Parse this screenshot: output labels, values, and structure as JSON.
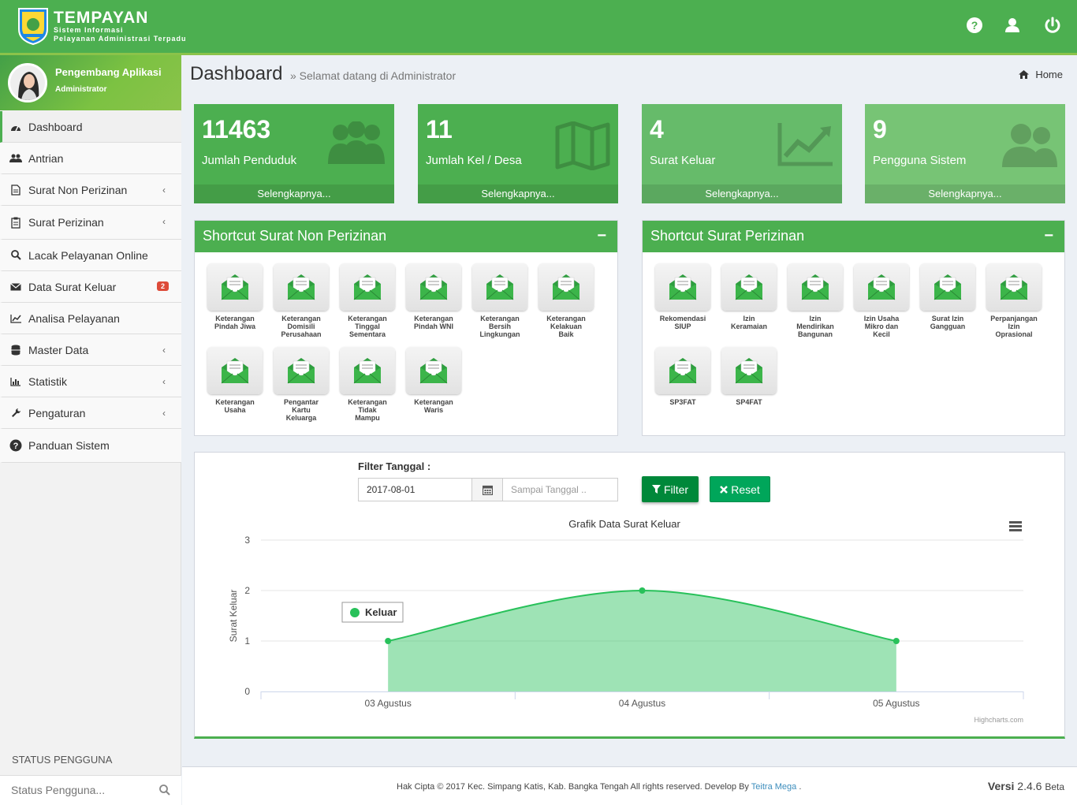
{
  "header": {
    "brand_title": "TEMPAYAN",
    "brand_sub_1": "Sistem Informasi",
    "brand_sub_2": "Pelayanan Administrasi Terpadu",
    "icons": [
      "help-icon",
      "user-icon",
      "power-icon"
    ]
  },
  "user": {
    "name": "Pengembang Aplikasi",
    "role": "Administrator"
  },
  "sidebar": {
    "items": [
      {
        "label": "Dashboard",
        "icon": "dashboard-icon",
        "active": true
      },
      {
        "label": "Antrian",
        "icon": "users-icon"
      },
      {
        "label": "Surat Non Perizinan",
        "icon": "file-icon",
        "chevron": true
      },
      {
        "label": "Surat Perizinan",
        "icon": "clipboard-icon",
        "chevron": true
      },
      {
        "label": "Lacak Pelayanan Online",
        "icon": "search-icon"
      },
      {
        "label": "Data Surat Keluar",
        "icon": "envelope-icon",
        "badge": "2"
      },
      {
        "label": "Analisa Pelayanan",
        "icon": "line-chart-icon"
      },
      {
        "label": "Master Data",
        "icon": "database-icon",
        "chevron": true
      },
      {
        "label": "Statistik",
        "icon": "bar-chart-icon",
        "chevron": true
      },
      {
        "label": "Pengaturan",
        "icon": "wrench-icon",
        "chevron": true
      },
      {
        "label": "Panduan Sistem",
        "icon": "question-icon"
      }
    ],
    "status_label": "STATUS PENGGUNA",
    "status_placeholder": "Status Pengguna..."
  },
  "page": {
    "title": "Dashboard",
    "subtitle": "» Selamat datang di Administrator",
    "breadcrumb": "Home"
  },
  "stats": [
    {
      "value": "11463",
      "label": "Jumlah Penduduk",
      "more": "Selengkapnya...",
      "color": "#4caf50",
      "icon": "users-icon"
    },
    {
      "value": "11",
      "label": "Jumlah Kel / Desa",
      "more": "Selengkapnya...",
      "color": "#5cb85c",
      "icon": "map-icon"
    },
    {
      "value": "4",
      "label": "Surat Keluar",
      "more": "Selengkapnya...",
      "color": "#6cc06c",
      "icon": "area-chart-icon"
    },
    {
      "value": "9",
      "label": "Pengguna Sistem",
      "more": "Selengkapnya...",
      "color": "#7ec87c",
      "icon": "user-group-icon"
    }
  ],
  "panel_non": {
    "title": "Shortcut Surat Non Perizinan",
    "collapse": "−",
    "items": [
      [
        "Keterangan",
        "Pindah Jiwa"
      ],
      [
        "Keterangan",
        "Domisili",
        "Perusahaan"
      ],
      [
        "Keterangan",
        "Tinggal",
        "Sementara"
      ],
      [
        "Keterangan",
        "Pindah WNI"
      ],
      [
        "Keterangan",
        "Bersih",
        "Lingkungan"
      ],
      [
        "Keterangan",
        "Kelakuan",
        "Baik"
      ],
      [
        "Keterangan",
        "Usaha"
      ],
      [
        "Pengantar",
        "Kartu",
        "Keluarga"
      ],
      [
        "Keterangan",
        "Tidak",
        "Mampu"
      ],
      [
        "Keterangan",
        "Waris"
      ]
    ]
  },
  "panel_izin": {
    "title": "Shortcut Surat Perizinan",
    "collapse": "−",
    "items": [
      [
        "Rekomendasi",
        "SIUP"
      ],
      [
        "Izin",
        "Keramaian"
      ],
      [
        "Izin",
        "Mendirikan",
        "Bangunan"
      ],
      [
        "Izin Usaha",
        "Mikro dan",
        "Kecil"
      ],
      [
        "Surat Izin",
        "Gangguan"
      ],
      [
        "Perpanjangan",
        "Izin",
        "Oprasional"
      ],
      [
        "SP3FAT"
      ],
      [
        "SP4FAT"
      ]
    ]
  },
  "filter": {
    "label": "Filter Tanggal :",
    "from_value": "2017-08-01",
    "to_placeholder": "Sampai Tanggal ..",
    "filter_btn": "Filter",
    "reset_btn": "Reset"
  },
  "chart_data": {
    "type": "area",
    "title": "Grafik Data Surat Keluar",
    "ylabel": "Surat Keluar",
    "xlabel": "",
    "categories": [
      "03 Agustus",
      "04 Agustus",
      "05 Agustus"
    ],
    "series": [
      {
        "name": "Keluar",
        "values": [
          1,
          2,
          1
        ],
        "color": "#28c15a"
      }
    ],
    "ylim": [
      0,
      3
    ],
    "yticks": [
      "0",
      "1",
      "2",
      "3"
    ],
    "legend_position": "top-left",
    "credits": "Highcharts.com",
    "grid": true
  },
  "footer": {
    "copyright": "Hak Cipta © 2017 Kec. Simpang Katis, Kab. Bangka Tengah All rights reserved. Develop By ",
    "developer": "Teitra Mega",
    "dot": " .",
    "version_label": "Versi",
    "version": "2.4.6",
    "version_tag": "Beta"
  }
}
